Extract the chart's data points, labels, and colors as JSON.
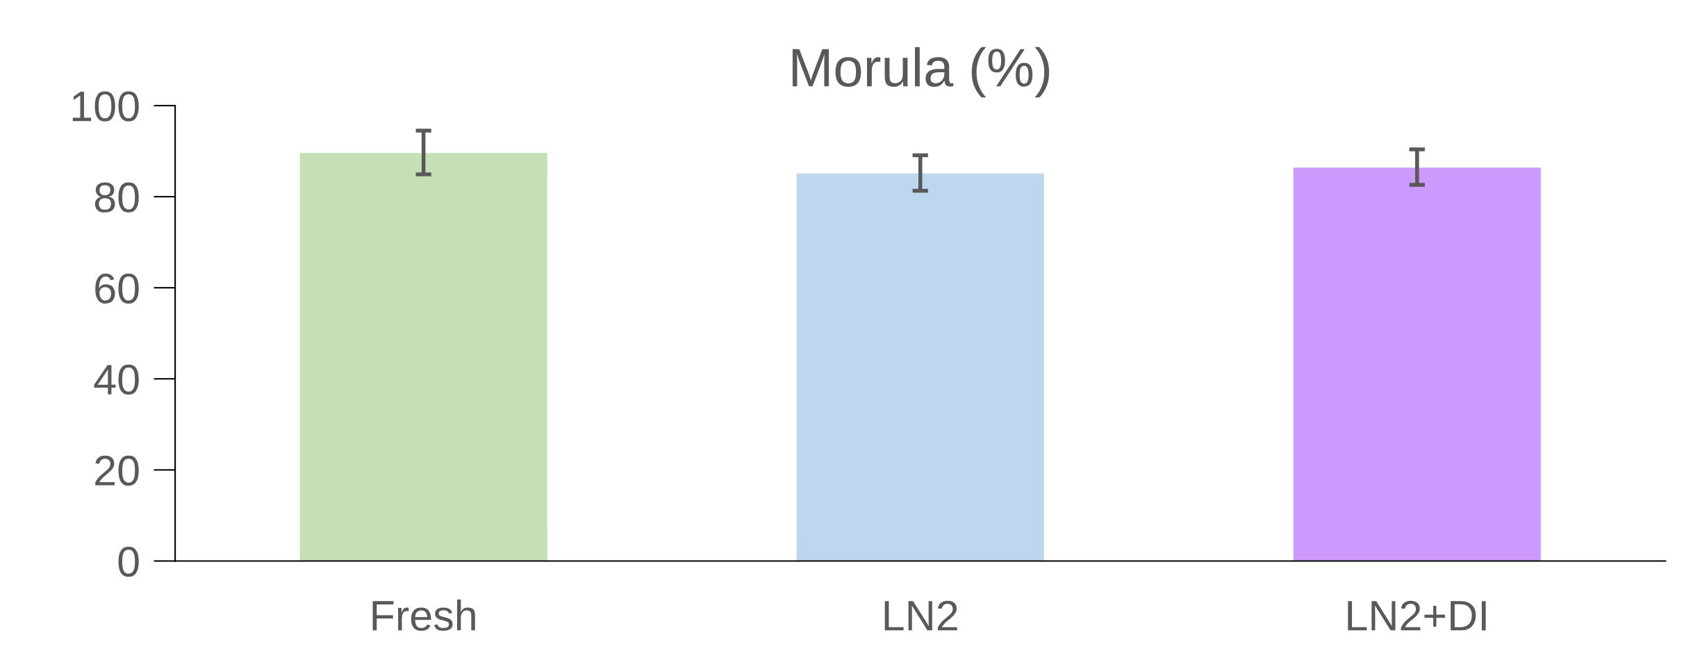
{
  "chart_data": {
    "type": "bar",
    "title": "Morula (%)",
    "categories": [
      "Fresh",
      "LN2",
      "LN2+DI"
    ],
    "values": [
      89.7,
      85.2,
      86.5
    ],
    "errors": [
      4.8,
      3.9,
      3.9
    ],
    "colors": [
      "#c5e0b4",
      "#bdd7ee",
      "#cc99ff"
    ],
    "ylim": [
      0,
      100
    ],
    "yticks": [
      0,
      20,
      40,
      60,
      80,
      100
    ],
    "grid": false
  }
}
